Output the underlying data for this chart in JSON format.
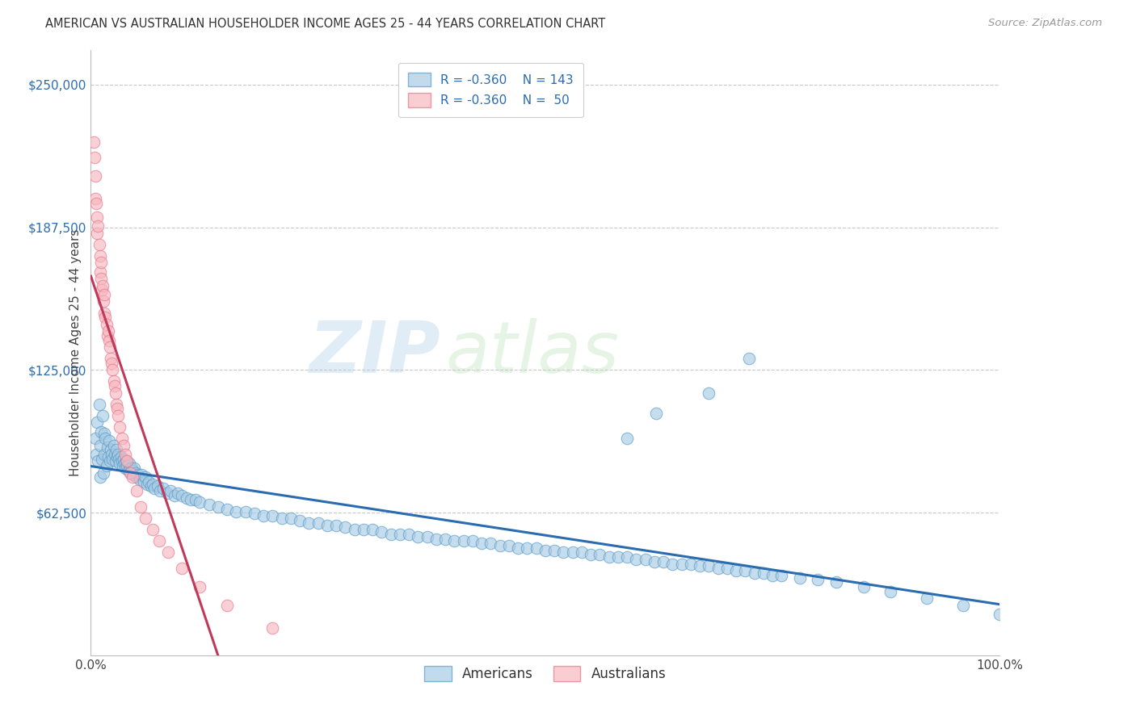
{
  "title": "AMERICAN VS AUSTRALIAN HOUSEHOLDER INCOME AGES 25 - 44 YEARS CORRELATION CHART",
  "source": "Source: ZipAtlas.com",
  "ylabel": "Householder Income Ages 25 - 44 years",
  "y_ticks": [
    0,
    62500,
    125000,
    187500,
    250000
  ],
  "x_min": 0.0,
  "x_max": 1.0,
  "y_min": 0,
  "y_max": 265000,
  "watermark_zip": "ZIP",
  "watermark_atlas": "atlas",
  "american_color": "#a8cce4",
  "american_edge_color": "#5b9bc8",
  "australian_color": "#f7b8c0",
  "australian_edge_color": "#e8758a",
  "american_line_color": "#2b6cb0",
  "australian_line_color": "#c0395a",
  "grid_color": "#c8c8c8",
  "background_color": "#ffffff",
  "americans_x": [
    0.005,
    0.006,
    0.007,
    0.008,
    0.009,
    0.01,
    0.01,
    0.011,
    0.012,
    0.013,
    0.014,
    0.015,
    0.015,
    0.016,
    0.017,
    0.018,
    0.019,
    0.02,
    0.021,
    0.022,
    0.023,
    0.024,
    0.025,
    0.026,
    0.027,
    0.028,
    0.029,
    0.03,
    0.031,
    0.032,
    0.033,
    0.034,
    0.035,
    0.036,
    0.037,
    0.038,
    0.039,
    0.04,
    0.041,
    0.042,
    0.043,
    0.044,
    0.045,
    0.046,
    0.047,
    0.048,
    0.049,
    0.05,
    0.052,
    0.054,
    0.056,
    0.058,
    0.06,
    0.062,
    0.064,
    0.066,
    0.068,
    0.07,
    0.073,
    0.076,
    0.08,
    0.084,
    0.088,
    0.092,
    0.096,
    0.1,
    0.105,
    0.11,
    0.115,
    0.12,
    0.13,
    0.14,
    0.15,
    0.16,
    0.17,
    0.18,
    0.19,
    0.2,
    0.21,
    0.22,
    0.23,
    0.24,
    0.25,
    0.26,
    0.27,
    0.28,
    0.29,
    0.3,
    0.31,
    0.32,
    0.33,
    0.34,
    0.35,
    0.36,
    0.37,
    0.38,
    0.39,
    0.4,
    0.41,
    0.42,
    0.43,
    0.44,
    0.45,
    0.46,
    0.47,
    0.48,
    0.49,
    0.5,
    0.51,
    0.52,
    0.53,
    0.54,
    0.55,
    0.56,
    0.57,
    0.58,
    0.59,
    0.6,
    0.61,
    0.62,
    0.63,
    0.64,
    0.65,
    0.66,
    0.67,
    0.68,
    0.69,
    0.7,
    0.71,
    0.72,
    0.73,
    0.74,
    0.75,
    0.76,
    0.78,
    0.8,
    0.82,
    0.85,
    0.88,
    0.92,
    0.96,
    1.0,
    0.622,
    0.724,
    0.59,
    0.68
  ],
  "americans_y": [
    95000,
    88000,
    102000,
    85000,
    110000,
    92000,
    78000,
    98000,
    86000,
    105000,
    80000,
    97000,
    88000,
    95000,
    83000,
    91000,
    87000,
    94000,
    85000,
    90000,
    88000,
    86000,
    92000,
    88000,
    85000,
    90000,
    87000,
    88000,
    86000,
    84000,
    87000,
    85000,
    83000,
    86000,
    84000,
    82000,
    85000,
    83000,
    81000,
    84000,
    82000,
    80000,
    82000,
    81000,
    79000,
    82000,
    80000,
    78000,
    79000,
    77000,
    79000,
    76000,
    78000,
    75000,
    76000,
    74000,
    75000,
    73000,
    74000,
    72000,
    73000,
    71000,
    72000,
    70000,
    71000,
    70000,
    69000,
    68000,
    68000,
    67000,
    66000,
    65000,
    64000,
    63000,
    63000,
    62000,
    61000,
    61000,
    60000,
    60000,
    59000,
    58000,
    58000,
    57000,
    57000,
    56000,
    55000,
    55000,
    55000,
    54000,
    53000,
    53000,
    53000,
    52000,
    52000,
    51000,
    51000,
    50000,
    50000,
    50000,
    49000,
    49000,
    48000,
    48000,
    47000,
    47000,
    47000,
    46000,
    46000,
    45000,
    45000,
    45000,
    44000,
    44000,
    43000,
    43000,
    43000,
    42000,
    42000,
    41000,
    41000,
    40000,
    40000,
    40000,
    39000,
    39000,
    38000,
    38000,
    37000,
    37000,
    36000,
    36000,
    35000,
    35000,
    34000,
    33000,
    32000,
    30000,
    28000,
    25000,
    22000,
    18000,
    106000,
    130000,
    95000,
    115000
  ],
  "australians_x": [
    0.003,
    0.004,
    0.005,
    0.005,
    0.006,
    0.007,
    0.007,
    0.008,
    0.009,
    0.01,
    0.01,
    0.011,
    0.011,
    0.012,
    0.013,
    0.014,
    0.015,
    0.015,
    0.016,
    0.017,
    0.018,
    0.019,
    0.02,
    0.021,
    0.022,
    0.023,
    0.024,
    0.025,
    0.026,
    0.027,
    0.028,
    0.029,
    0.03,
    0.032,
    0.034,
    0.036,
    0.038,
    0.04,
    0.043,
    0.046,
    0.05,
    0.055,
    0.06,
    0.068,
    0.075,
    0.085,
    0.1,
    0.12,
    0.15,
    0.2
  ],
  "australians_y": [
    225000,
    218000,
    210000,
    200000,
    198000,
    192000,
    185000,
    188000,
    180000,
    175000,
    168000,
    172000,
    165000,
    160000,
    162000,
    155000,
    158000,
    150000,
    148000,
    145000,
    140000,
    142000,
    138000,
    135000,
    130000,
    128000,
    125000,
    120000,
    118000,
    115000,
    110000,
    108000,
    105000,
    100000,
    95000,
    92000,
    88000,
    85000,
    80000,
    78000,
    72000,
    65000,
    60000,
    55000,
    50000,
    45000,
    38000,
    30000,
    22000,
    12000
  ]
}
